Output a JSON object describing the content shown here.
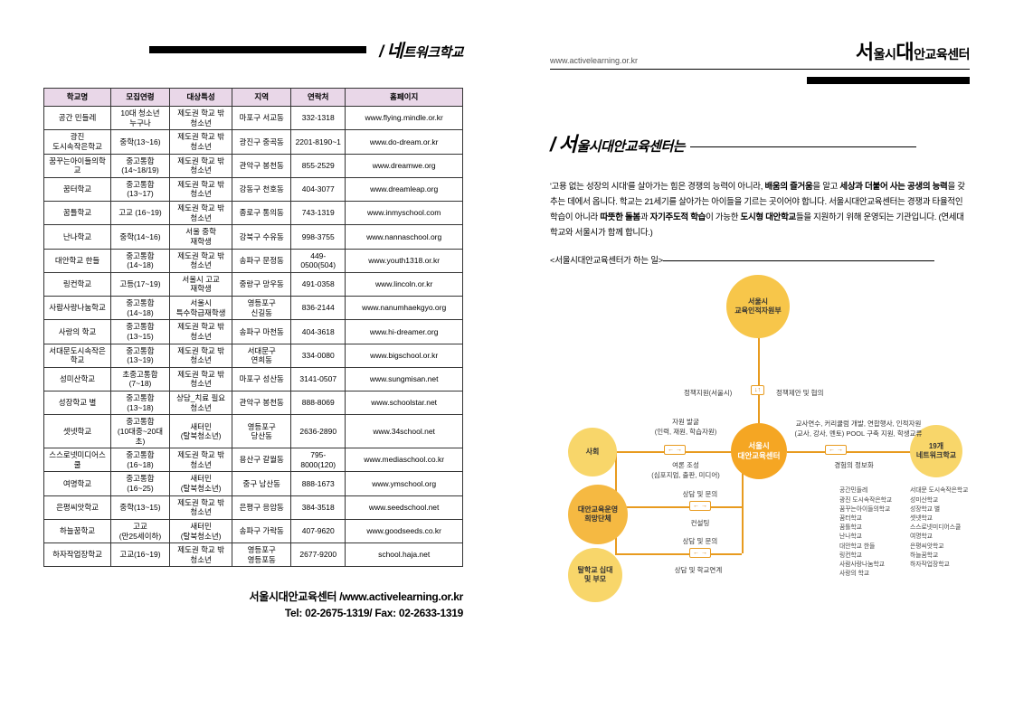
{
  "left": {
    "header_title": "네트워크학교",
    "table": {
      "headers": [
        "학교명",
        "모집연령",
        "대상특성",
        "지역",
        "연락처",
        "홈페이지"
      ],
      "rows": [
        [
          "공간 민들레",
          "10대 청소년\n누구나",
          "제도권 학교 밖\n청소년",
          "마포구 서교동",
          "332-1318",
          "www.flying.mindle.or.kr"
        ],
        [
          "광진\n도시속작은학교",
          "중학(13~16)",
          "제도권 학교 밖\n청소년",
          "광진구 중곡동",
          "2201-8190~1",
          "www.do-dream.or.kr"
        ],
        [
          "꿈꾸는아이들의학교",
          "중고통합\n(14~18/19)",
          "제도권 학교 밖\n청소년",
          "관악구 봉천동",
          "855-2529",
          "www.dreamwe.org"
        ],
        [
          "꿈터학교",
          "중고통합\n(13~17)",
          "제도권 학교 밖\n청소년",
          "강동구 천호동",
          "404-3077",
          "www.dreamleap.org"
        ],
        [
          "꿈틀학교",
          "고교 (16~19)",
          "제도권 학교 밖\n청소년",
          "종로구 통의동",
          "743-1319",
          "www.inmyschool.com"
        ],
        [
          "난나학교",
          "중학(14~16)",
          "서울 중학\n재학생",
          "강북구 수유동",
          "998-3755",
          "www.nannaschool.org"
        ],
        [
          "대안학교 한들",
          "중고통합\n(14~18)",
          "제도권 학교 밖\n청소년",
          "송파구 문정동",
          "449-0500(504)",
          "www.youth1318.or.kr"
        ],
        [
          "링컨학교",
          "고등(17~19)",
          "서울시 고교\n재학생",
          "중랑구 망우동",
          "491-0358",
          "www.lincoln.or.kr"
        ],
        [
          "사람사랑나눔학교",
          "중고통합\n(14~18)",
          "서울시\n특수학급재학생",
          "영등포구\n신길동",
          "836-2144",
          "www.nanumhaekgyo.org"
        ],
        [
          "사랑의 학교",
          "중고통합\n(13~15)",
          "제도권 학교 밖\n청소년",
          "송파구 마천동",
          "404-3618",
          "www.hi-dreamer.org"
        ],
        [
          "서대문도시속작은학교",
          "중고통합\n(13~19)",
          "제도권 학교 밖\n청소년",
          "서대문구\n연희동",
          "334-0080",
          "www.bigschool.or.kr"
        ],
        [
          "성미산학교",
          "초중고통합\n(7~18)",
          "제도권 학교 밖\n청소년",
          "마포구 성산동",
          "3141-0507",
          "www.sungmisan.net"
        ],
        [
          "성장학교 별",
          "중고통합\n(13~18)",
          "상담_치료 필요\n청소년",
          "관악구 봉천동",
          "888-8069",
          "www.schoolstar.net"
        ],
        [
          "셋넷학교",
          "중고통합\n(10대중~20대초)",
          "새터민\n(탈북청소년)",
          "영등포구\n당산동",
          "2636-2890",
          "www.34school.net"
        ],
        [
          "스스로넷미디어스쿨",
          "중고통합\n(16~18)",
          "제도권 학교 밖\n청소년",
          "용산구 갈월동",
          "795-8000(120)",
          "www.mediaschool.co.kr"
        ],
        [
          "여명학교",
          "중고통합\n(16~25)",
          "새터민\n(탈북청소년)",
          "중구 남산동",
          "888-1673",
          "www.ymschool.org"
        ],
        [
          "은평씨앗학교",
          "중학(13~15)",
          "제도권 학교 밖\n청소년",
          "은평구 응암동",
          "384-3518",
          "www.seedschool.net"
        ],
        [
          "하늘꿈학교",
          "고교\n(만25세이하)",
          "새터민\n(탈북청소년)",
          "송파구 가락동",
          "407-9620",
          "www.goodseeds.co.kr"
        ],
        [
          "하자작업장학교",
          "고교(16~19)",
          "제도권 학교 밖\n청소년",
          "영등포구\n영등포동",
          "2677-9200",
          "school.haja.net"
        ]
      ]
    },
    "footer_line1": "서울시대안교육센터 /www.activelearning.or.kr",
    "footer_line2": "Tel: 02-2675-1319/ Fax: 02-2633-1319"
  },
  "right": {
    "url": "www.activelearning.or.kr",
    "logo": "서울시대안교육센터",
    "title": "서울시대안교육센터는",
    "intro": "'고용 없는 성장의 시대'를 살아가는 힘은 경쟁의 능력이 아니라, <b>배움의 즐거움</b>을 알고 <b>세상과 더불어 사는 공생의 능력</b>을 갖추는 데에서 옵니다. 학교는 21세기를 살아가는 아이들을 기르는 곳이어야 합니다. 서울시대안교육센터는 경쟁과 타율적인 학습이 아니라 <b>따뜻한 돌봄</b>과 <b>자기주도적 학습</b>이 가능한 <b>도시형 대안학교</b>들을 지원하기 위해 운영되는 기관입니다. (연세대학교와 서울시가 함께 합니다.)",
    "sub": "<서울시대안교육센터가 하는 일>",
    "diagram": {
      "center": "서울시\n대안교육센터",
      "top": "서울시\n교육인적자원부",
      "left1": "사회",
      "left2": "대안교육운영\n희망단체",
      "left3": "탈학교 십대\n및 부모",
      "right": "19개\n네트워크학교",
      "lbl_top_l": "정책지원(서울시)",
      "lbl_top_r": "정책제안 및 협의",
      "lbl_l1a": "자원 발굴\n(인력, 재원, 학습자원)",
      "lbl_l1b": "여론 조성\n(심포지엄, 출판, 미디어)",
      "lbl_l2a": "상담 및 문의",
      "lbl_l2b": "컨설팅",
      "lbl_l3a": "상담 및 문의",
      "lbl_l3b": "상담 및 학교연계",
      "lbl_r1": "교사연수, 커리큘럼 개발, 연합행사, 인적자원\n(교사, 강사, 멘토) POOL 구축 지원, 학생교류",
      "lbl_r2": "경험의 정보화",
      "schools_l": "공간민들레\n광진 도시속작은학교\n꿈꾸는아이들의학교\n꿈터학교\n꿈틀학교\n난나학교\n대안학교 한들\n링컨학교\n사람사랑나눔학교\n사랑의 학교",
      "schools_r": "서대문 도시속작은학교\n성미산학교\n성장학교 별\n셋넷학교\n스스로넷미디어스쿨\n여명학교\n은평씨앗학교\n하늘꿈학교\n하자작업장학교"
    }
  }
}
